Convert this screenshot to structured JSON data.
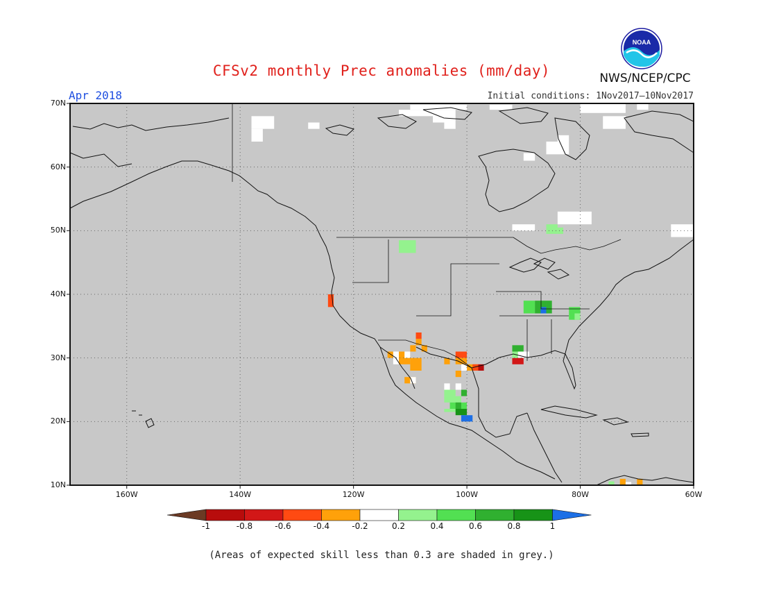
{
  "title": "CFSv2 monthly Prec anomalies (mm/day)",
  "target_month": "Apr 2018",
  "initial_conditions": "Initial conditions: 1Nov2017–10Nov2017",
  "agency": "NWS/NCEP/CPC",
  "logo_text": "NOAA",
  "footnote": "(Areas of expected skill less than 0.3 are shaded in grey.)",
  "map": {
    "lon_range": [
      -170,
      -60
    ],
    "lat_range": [
      10,
      70
    ],
    "lat_ticks": [
      {
        "value": 70,
        "label": "70N"
      },
      {
        "value": 60,
        "label": "60N"
      },
      {
        "value": 50,
        "label": "50N"
      },
      {
        "value": 40,
        "label": "40N"
      },
      {
        "value": 30,
        "label": "30N"
      },
      {
        "value": 20,
        "label": "20N"
      },
      {
        "value": 10,
        "label": "10N"
      }
    ],
    "lon_ticks": [
      {
        "value": -160,
        "label": "160W"
      },
      {
        "value": -140,
        "label": "140W"
      },
      {
        "value": -120,
        "label": "120W"
      },
      {
        "value": -100,
        "label": "100W"
      },
      {
        "value": -80,
        "label": "80W"
      },
      {
        "value": -60,
        "label": "60W"
      }
    ],
    "background_color": "#c8c8c8",
    "grid": "dotted"
  },
  "colorbar": {
    "labels": [
      "-1",
      "-0.8",
      "-0.6",
      "-0.4",
      "-0.2",
      "0.2",
      "0.4",
      "0.6",
      "0.8",
      "1"
    ],
    "colors": [
      "#6b3a24",
      "#b80c0c",
      "#d21717",
      "#ff4a12",
      "#ffa10a",
      "#ffffff",
      "#94f28e",
      "#52e052",
      "#30b030",
      "#179317",
      "#1c6fe6"
    ]
  },
  "anomaly_cells": [
    {
      "lon": -138,
      "lat": 66,
      "w": 4,
      "h": 2,
      "color": "#ffffff"
    },
    {
      "lon": -138,
      "lat": 64,
      "w": 2,
      "h": 2,
      "color": "#ffffff"
    },
    {
      "lon": -128,
      "lat": 66,
      "w": 2,
      "h": 1,
      "color": "#ffffff"
    },
    {
      "lon": -112,
      "lat": 68,
      "w": 6,
      "h": 1,
      "color": "#ffffff"
    },
    {
      "lon": -106,
      "lat": 67,
      "w": 4,
      "h": 2,
      "color": "#ffffff"
    },
    {
      "lon": -104,
      "lat": 66,
      "w": 2,
      "h": 1,
      "color": "#ffffff"
    },
    {
      "lon": -110,
      "lat": 69,
      "w": 10,
      "h": 0.8,
      "color": "#ffffff"
    },
    {
      "lon": -96,
      "lat": 69,
      "w": 4,
      "h": 0.8,
      "color": "#ffffff"
    },
    {
      "lon": -80,
      "lat": 68.5,
      "w": 8,
      "h": 1.5,
      "color": "#ffffff"
    },
    {
      "lon": -76,
      "lat": 66,
      "w": 4,
      "h": 2,
      "color": "#ffffff"
    },
    {
      "lon": -70,
      "lat": 69,
      "w": 2,
      "h": 1,
      "color": "#ffffff"
    },
    {
      "lon": -86,
      "lat": 62,
      "w": 4,
      "h": 2,
      "color": "#ffffff"
    },
    {
      "lon": -84,
      "lat": 64,
      "w": 2,
      "h": 1,
      "color": "#ffffff"
    },
    {
      "lon": -90,
      "lat": 61,
      "w": 2,
      "h": 1.2,
      "color": "#ffffff"
    },
    {
      "lon": -84,
      "lat": 51,
      "w": 6,
      "h": 2,
      "color": "#ffffff"
    },
    {
      "lon": -92,
      "lat": 50,
      "w": 4,
      "h": 1,
      "color": "#ffffff"
    },
    {
      "lon": -64,
      "lat": 49,
      "w": 8,
      "h": 2,
      "color": "#ffffff"
    },
    {
      "lon": -86,
      "lat": 49.5,
      "w": 2,
      "h": 1.5,
      "color": "#94f28e"
    },
    {
      "lon": -84,
      "lat": 49.5,
      "w": 1,
      "h": 1,
      "color": "#94f28e"
    },
    {
      "lon": -112,
      "lat": 46.5,
      "w": 3,
      "h": 2,
      "color": "#94f28e"
    },
    {
      "lon": -124.5,
      "lat": 38,
      "w": 1,
      "h": 2,
      "color": "#ff4a12"
    },
    {
      "lon": -112,
      "lat": 29,
      "w": 2,
      "h": 2,
      "color": "#ffa10a"
    },
    {
      "lon": -110,
      "lat": 28,
      "w": 2,
      "h": 2,
      "color": "#ffa10a"
    },
    {
      "lon": -114,
      "lat": 30,
      "w": 2,
      "h": 1,
      "color": "#ffa10a"
    },
    {
      "lon": -110,
      "lat": 31,
      "w": 1,
      "h": 1,
      "color": "#ffa10a"
    },
    {
      "lon": -109,
      "lat": 32,
      "w": 1,
      "h": 1,
      "color": "#ffa10a"
    },
    {
      "lon": -108,
      "lat": 31,
      "w": 1,
      "h": 1,
      "color": "#ffa10a"
    },
    {
      "lon": -109,
      "lat": 33,
      "w": 1,
      "h": 1,
      "color": "#ff4a12"
    },
    {
      "lon": -111,
      "lat": 26,
      "w": 2,
      "h": 1,
      "color": "#ffa10a"
    },
    {
      "lon": -113,
      "lat": 29,
      "w": 1,
      "h": 2,
      "color": "#ffffff"
    },
    {
      "lon": -111,
      "lat": 30,
      "w": 1,
      "h": 1,
      "color": "#ffffff"
    },
    {
      "lon": -110,
      "lat": 26,
      "w": 1,
      "h": 1,
      "color": "#ffffff"
    },
    {
      "lon": -102,
      "lat": 30,
      "w": 2,
      "h": 1,
      "color": "#ff4a12"
    },
    {
      "lon": -104,
      "lat": 29,
      "w": 1,
      "h": 1,
      "color": "#ffa10a"
    },
    {
      "lon": -102,
      "lat": 29,
      "w": 2,
      "h": 1,
      "color": "#ffa10a"
    },
    {
      "lon": -100,
      "lat": 28,
      "w": 2,
      "h": 1,
      "color": "#ffa10a"
    },
    {
      "lon": -102,
      "lat": 27,
      "w": 1,
      "h": 1,
      "color": "#ffa10a"
    },
    {
      "lon": -99,
      "lat": 28,
      "w": 1,
      "h": 1,
      "color": "#ff4a12"
    },
    {
      "lon": -98,
      "lat": 28,
      "w": 1,
      "h": 1,
      "color": "#b80c0c"
    },
    {
      "lon": -101,
      "lat": 28,
      "w": 1,
      "h": 1,
      "color": "#ffffff"
    },
    {
      "lon": -91,
      "lat": 30,
      "w": 2,
      "h": 1,
      "color": "#ffffff"
    },
    {
      "lon": -92,
      "lat": 29,
      "w": 2,
      "h": 1,
      "color": "#d21717"
    },
    {
      "lon": -92,
      "lat": 30,
      "w": 1,
      "h": 1,
      "color": "#94f28e"
    },
    {
      "lon": -92,
      "lat": 31,
      "w": 2,
      "h": 1,
      "color": "#30b030"
    },
    {
      "lon": -104,
      "lat": 24,
      "w": 2,
      "h": 1,
      "color": "#94f28e"
    },
    {
      "lon": -104,
      "lat": 23,
      "w": 3,
      "h": 1,
      "color": "#94f28e"
    },
    {
      "lon": -103,
      "lat": 22,
      "w": 3,
      "h": 1,
      "color": "#52e052"
    },
    {
      "lon": -104,
      "lat": 21.5,
      "w": 4,
      "h": 0.5,
      "color": "#94f28e"
    },
    {
      "lon": -102,
      "lat": 22,
      "w": 1,
      "h": 1,
      "color": "#30b030"
    },
    {
      "lon": -101,
      "lat": 24,
      "w": 1,
      "h": 1,
      "color": "#30b030"
    },
    {
      "lon": -102,
      "lat": 25,
      "w": 1,
      "h": 1,
      "color": "#ffffff"
    },
    {
      "lon": -104,
      "lat": 25,
      "w": 1,
      "h": 1,
      "color": "#ffffff"
    },
    {
      "lon": -102,
      "lat": 21,
      "w": 2,
      "h": 1,
      "color": "#179317"
    },
    {
      "lon": -101,
      "lat": 20,
      "w": 2,
      "h": 1,
      "color": "#1c6fe6"
    },
    {
      "lon": -90,
      "lat": 37,
      "w": 2,
      "h": 2,
      "color": "#52e052"
    },
    {
      "lon": -88,
      "lat": 37,
      "w": 2,
      "h": 2,
      "color": "#30b030"
    },
    {
      "lon": -86,
      "lat": 37,
      "w": 1,
      "h": 2,
      "color": "#30b030"
    },
    {
      "lon": -87,
      "lat": 37,
      "w": 1,
      "h": 1,
      "color": "#1c6fe6"
    },
    {
      "lon": -82,
      "lat": 36,
      "w": 2,
      "h": 2,
      "color": "#52e052"
    },
    {
      "lon": -81,
      "lat": 36,
      "w": 1,
      "h": 1,
      "color": "#94f28e"
    },
    {
      "lon": -73,
      "lat": 10,
      "w": 1,
      "h": 1,
      "color": "#ffa10a"
    },
    {
      "lon": -70,
      "lat": 10,
      "w": 1,
      "h": 1,
      "color": "#ffa10a"
    },
    {
      "lon": -75,
      "lat": 10,
      "w": 1,
      "h": 0.6,
      "color": "#94f28e"
    },
    {
      "lon": -72,
      "lat": 10,
      "w": 1,
      "h": 0.5,
      "color": "#ffffff"
    }
  ]
}
